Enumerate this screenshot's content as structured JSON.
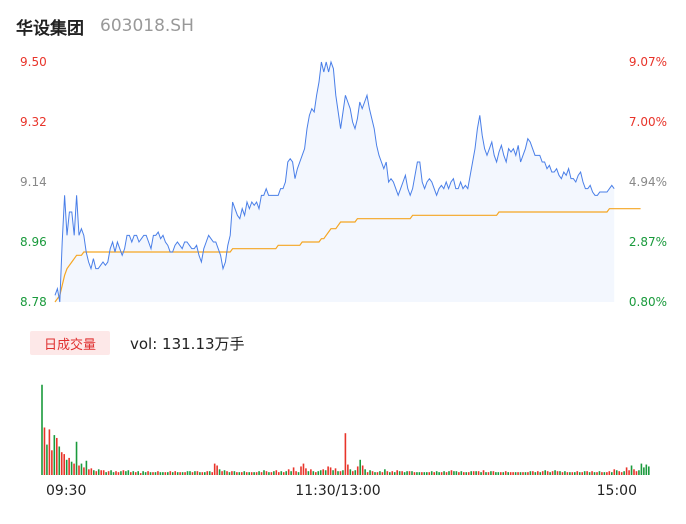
{
  "header": {
    "name": "华设集团",
    "code": "603018.SH"
  },
  "volume_panel": {
    "label": "日成交量",
    "value_text": "vol: 131.13万手"
  },
  "colors": {
    "up": "#e8342a",
    "down": "#1a9a3c",
    "price_line": "#4a7fe8",
    "avg_line": "#f5a623",
    "area_fill": "#f3f7fe",
    "neutral": "#888888"
  },
  "chart_data": [
    {
      "type": "line",
      "title": "",
      "y_ticks": [
        "9.50",
        "9.32",
        "9.14",
        "8.96",
        "8.78"
      ],
      "y_tick_values": [
        9.5,
        9.32,
        9.14,
        8.96,
        8.78
      ],
      "y_tick_colors": [
        "#e8342a",
        "#e8342a",
        "#888888",
        "#1a9a3c",
        "#1a9a3c"
      ],
      "pct_ticks": [
        "9.07%",
        "7.00%",
        "4.94%",
        "2.87%",
        "0.80%"
      ],
      "ylim": [
        8.78,
        9.5
      ],
      "x_ticks": [
        "09:30",
        "11:30/13:00",
        "15:00"
      ],
      "x_tick_positions": [
        0,
        120,
        240
      ],
      "x_range": [
        0,
        240
      ],
      "series": [
        {
          "key": "price",
          "values": [
            8.8,
            8.82,
            8.78,
            8.96,
            9.1,
            8.98,
            9.05,
            9.05,
            8.98,
            9.1,
            8.98,
            9.0,
            8.98,
            8.93,
            8.9,
            8.88,
            8.91,
            8.88,
            8.88,
            8.89,
            8.9,
            8.89,
            8.9,
            8.94,
            8.96,
            8.93,
            8.96,
            8.94,
            8.92,
            8.94,
            8.98,
            8.98,
            8.96,
            8.98,
            8.98,
            8.96,
            8.97,
            8.98,
            8.98,
            8.96,
            8.94,
            8.98,
            8.98,
            8.99,
            8.97,
            8.98,
            8.96,
            8.95,
            8.93,
            8.93,
            8.95,
            8.96,
            8.95,
            8.94,
            8.96,
            8.96,
            8.95,
            8.94,
            8.94,
            8.95,
            8.92,
            8.9,
            8.94,
            8.96,
            8.98,
            8.97,
            8.96,
            8.96,
            8.94,
            8.92,
            8.88,
            8.9,
            8.95,
            8.98,
            9.08,
            9.06,
            9.04,
            9.03,
            9.06,
            9.04,
            9.08,
            9.06,
            9.08,
            9.07,
            9.08,
            9.06,
            9.1,
            9.1,
            9.12,
            9.1,
            9.1,
            9.1,
            9.1,
            9.1,
            9.12,
            9.12,
            9.14,
            9.2,
            9.21,
            9.2,
            9.15,
            9.18,
            9.2,
            9.22,
            9.24,
            9.3,
            9.34,
            9.36,
            9.35,
            9.4,
            9.44,
            9.5,
            9.47,
            9.5,
            9.47,
            9.5,
            9.48,
            9.4,
            9.35,
            9.3,
            9.35,
            9.4,
            9.38,
            9.36,
            9.32,
            9.3,
            9.33,
            9.38,
            9.36,
            9.38,
            9.4,
            9.36,
            9.33,
            9.3,
            9.25,
            9.22,
            9.2,
            9.18,
            9.2,
            9.14,
            9.15,
            9.14,
            9.12,
            9.1,
            9.12,
            9.14,
            9.16,
            9.12,
            9.1,
            9.12,
            9.16,
            9.2,
            9.2,
            9.14,
            9.12,
            9.14,
            9.15,
            9.14,
            9.12,
            9.1,
            9.12,
            9.13,
            9.12,
            9.14,
            9.12,
            9.14,
            9.15,
            9.12,
            9.12,
            9.14,
            9.12,
            9.13,
            9.12,
            9.16,
            9.2,
            9.24,
            9.3,
            9.34,
            9.28,
            9.24,
            9.22,
            9.24,
            9.26,
            9.22,
            9.2,
            9.23,
            9.25,
            9.22,
            9.2,
            9.24,
            9.23,
            9.24,
            9.22,
            9.25,
            9.2,
            9.22,
            9.24,
            9.27,
            9.26,
            9.24,
            9.22,
            9.22,
            9.22,
            9.2,
            9.2,
            9.18,
            9.19,
            9.17,
            9.17,
            9.18,
            9.16,
            9.15,
            9.17,
            9.16,
            9.18,
            9.15,
            9.15,
            9.14,
            9.16,
            9.17,
            9.14,
            9.12,
            9.12,
            9.13,
            9.11,
            9.1,
            9.1,
            9.11,
            9.11,
            9.11,
            9.11,
            9.12,
            9.13,
            9.12
          ]
        },
        {
          "key": "average",
          "values": [
            8.78,
            8.79,
            8.8,
            8.83,
            8.86,
            8.88,
            8.89,
            8.9,
            8.91,
            8.92,
            8.92,
            8.92,
            8.93,
            8.93,
            8.93,
            8.93,
            8.93,
            8.93,
            8.93,
            8.93,
            8.93,
            8.93,
            8.93,
            8.93,
            8.93,
            8.93,
            8.93,
            8.93,
            8.93,
            8.93,
            8.93,
            8.93,
            8.93,
            8.93,
            8.93,
            8.93,
            8.93,
            8.93,
            8.93,
            8.93,
            8.93,
            8.93,
            8.93,
            8.93,
            8.93,
            8.93,
            8.93,
            8.93,
            8.93,
            8.93,
            8.93,
            8.93,
            8.93,
            8.93,
            8.93,
            8.93,
            8.93,
            8.93,
            8.93,
            8.93,
            8.93,
            8.93,
            8.93,
            8.93,
            8.93,
            8.93,
            8.93,
            8.93,
            8.93,
            8.93,
            8.93,
            8.93,
            8.93,
            8.93,
            8.94,
            8.94,
            8.94,
            8.94,
            8.94,
            8.94,
            8.94,
            8.94,
            8.94,
            8.94,
            8.94,
            8.94,
            8.94,
            8.94,
            8.94,
            8.94,
            8.94,
            8.94,
            8.94,
            8.95,
            8.95,
            8.95,
            8.95,
            8.95,
            8.95,
            8.95,
            8.95,
            8.95,
            8.95,
            8.96,
            8.96,
            8.96,
            8.96,
            8.96,
            8.96,
            8.96,
            8.96,
            8.97,
            8.97,
            8.98,
            8.99,
            9.0,
            9.0,
            9.0,
            9.01,
            9.02,
            9.02,
            9.02,
            9.02,
            9.02,
            9.02,
            9.02,
            9.03,
            9.03,
            9.03,
            9.03,
            9.03,
            9.03,
            9.03,
            9.03,
            9.03,
            9.03,
            9.03,
            9.03,
            9.03,
            9.03,
            9.03,
            9.03,
            9.03,
            9.03,
            9.03,
            9.03,
            9.03,
            9.03,
            9.03,
            9.04,
            9.04,
            9.04,
            9.04,
            9.04,
            9.04,
            9.04,
            9.04,
            9.04,
            9.04,
            9.04,
            9.04,
            9.04,
            9.04,
            9.04,
            9.04,
            9.04,
            9.04,
            9.04,
            9.04,
            9.04,
            9.04,
            9.04,
            9.04,
            9.04,
            9.04,
            9.04,
            9.04,
            9.04,
            9.04,
            9.04,
            9.04,
            9.04,
            9.04,
            9.04,
            9.04,
            9.05,
            9.05,
            9.05,
            9.05,
            9.05,
            9.05,
            9.05,
            9.05,
            9.05,
            9.05,
            9.05,
            9.05,
            9.05,
            9.05,
            9.05,
            9.05,
            9.05,
            9.05,
            9.05,
            9.05,
            9.05,
            9.05,
            9.05,
            9.05,
            9.05,
            9.05,
            9.05,
            9.05,
            9.05,
            9.05,
            9.05,
            9.05,
            9.05,
            9.05,
            9.05,
            9.05,
            9.05,
            9.05,
            9.05,
            9.05,
            9.05,
            9.05,
            9.05,
            9.05,
            9.05,
            9.05,
            9.06,
            9.06,
            9.06,
            9.06,
            9.06,
            9.06,
            9.06,
            9.06,
            9.06,
            9.06,
            9.06,
            9.06,
            9.06,
            9.06
          ]
        }
      ]
    },
    {
      "type": "bar",
      "title": "",
      "x_range": [
        0,
        240
      ],
      "volume_units": "万手",
      "ylim": [
        0,
        10
      ],
      "values": [
        9.5,
        5,
        3.2,
        4.8,
        2.6,
        4.2,
        3.9,
        3,
        2.4,
        2.2,
        1.6,
        1.8,
        1.4,
        1.2,
        3.5,
        1,
        1.2,
        0.8,
        1.5,
        0.6,
        0.7,
        0.5,
        0.4,
        0.6,
        0.5,
        0.5,
        0.3,
        0.4,
        0.5,
        0.3,
        0.4,
        0.3,
        0.4,
        0.5,
        0.4,
        0.5,
        0.3,
        0.4,
        0.3,
        0.4,
        0.2,
        0.4,
        0.3,
        0.4,
        0.3,
        0.3,
        0.3,
        0.4,
        0.3,
        0.3,
        0.3,
        0.3,
        0.4,
        0.3,
        0.4,
        0.3,
        0.3,
        0.3,
        0.3,
        0.4,
        0.4,
        0.3,
        0.4,
        0.4,
        0.3,
        0.3,
        0.3,
        0.4,
        0.4,
        0.3,
        1.2,
        1,
        0.6,
        0.4,
        0.5,
        0.4,
        0.3,
        0.4,
        0.4,
        0.3,
        0.3,
        0.3,
        0.4,
        0.3,
        0.3,
        0.3,
        0.3,
        0.3,
        0.4,
        0.3,
        0.5,
        0.4,
        0.3,
        0.3,
        0.4,
        0.5,
        0.3,
        0.4,
        0.3,
        0.4,
        0.6,
        0.4,
        0.8,
        0.4,
        0.3,
        0.9,
        1.2,
        0.7,
        0.4,
        0.6,
        0.4,
        0.3,
        0.4,
        0.5,
        0.6,
        0.5,
        0.9,
        0.8,
        0.5,
        0.7,
        0.4,
        0.4,
        0.5,
        4.4,
        1.1,
        0.6,
        0.4,
        0.5,
        0.9,
        1.6,
        1,
        0.6,
        0.3,
        0.5,
        0.4,
        0.3,
        0.3,
        0.4,
        0.3,
        0.6,
        0.4,
        0.3,
        0.4,
        0.3,
        0.5,
        0.4,
        0.4,
        0.3,
        0.4,
        0.4,
        0.4,
        0.3,
        0.3,
        0.3,
        0.3,
        0.3,
        0.3,
        0.3,
        0.4,
        0.3,
        0.4,
        0.3,
        0.3,
        0.4,
        0.3,
        0.4,
        0.5,
        0.4,
        0.4,
        0.3,
        0.4,
        0.3,
        0.3,
        0.3,
        0.4,
        0.4,
        0.4,
        0.4,
        0.3,
        0.5,
        0.3,
        0.3,
        0.4,
        0.4,
        0.3,
        0.3,
        0.3,
        0.3,
        0.4,
        0.3,
        0.3,
        0.3,
        0.3,
        0.3,
        0.3,
        0.3,
        0.3,
        0.3,
        0.4,
        0.4,
        0.3,
        0.4,
        0.3,
        0.4,
        0.5,
        0.4,
        0.3,
        0.4,
        0.5,
        0.4,
        0.4,
        0.3,
        0.4,
        0.3,
        0.3,
        0.3,
        0.3,
        0.4,
        0.3,
        0.3,
        0.4,
        0.4,
        0.3,
        0.4,
        0.3,
        0.3,
        0.4,
        0.3,
        0.3,
        0.3,
        0.4,
        0.3,
        0.6,
        0.5,
        0.4,
        0.3,
        0.4,
        0.8,
        0.5,
        1,
        0.6,
        0.4,
        0.5,
        1.2,
        0.8,
        1.1,
        0.9
      ],
      "colors": [
        "d",
        "u",
        "d",
        "u",
        "u",
        "d",
        "u",
        "d",
        "u",
        "u",
        "d",
        "u",
        "d",
        "u",
        "d",
        "u",
        "d",
        "u",
        "d",
        "u",
        "u",
        "d",
        "u",
        "d",
        "u",
        "u",
        "d",
        "u",
        "d",
        "d",
        "u",
        "u",
        "d",
        "u",
        "d",
        "d",
        "u",
        "d",
        "u",
        "d",
        "u",
        "d",
        "d",
        "u",
        "d",
        "u",
        "d",
        "u",
        "d",
        "d",
        "u",
        "d",
        "u",
        "d",
        "u",
        "d",
        "u",
        "d",
        "u",
        "d",
        "d",
        "u",
        "d",
        "u",
        "d",
        "u",
        "d",
        "u",
        "d",
        "u",
        "u",
        "u",
        "d",
        "u",
        "d",
        "u",
        "d",
        "u",
        "d",
        "u",
        "d",
        "u",
        "d",
        "u",
        "d",
        "u",
        "d",
        "u",
        "d",
        "u",
        "d",
        "u",
        "d",
        "u",
        "d",
        "u",
        "u",
        "d",
        "u",
        "d",
        "u",
        "d",
        "u",
        "u",
        "d",
        "u",
        "u",
        "u",
        "d",
        "u",
        "d",
        "u",
        "d",
        "d",
        "u",
        "d",
        "u",
        "u",
        "d",
        "u",
        "d",
        "u",
        "d",
        "u",
        "u",
        "d",
        "u",
        "d",
        "u",
        "d",
        "u",
        "d",
        "u",
        "d",
        "u",
        "d",
        "u",
        "d",
        "u",
        "d",
        "u",
        "d",
        "u",
        "d",
        "u",
        "d",
        "u",
        "d",
        "d",
        "u",
        "d",
        "u",
        "d",
        "d",
        "u",
        "d",
        "d",
        "u",
        "d",
        "u",
        "d",
        "d",
        "u",
        "d",
        "u",
        "d",
        "u",
        "d",
        "d",
        "u",
        "d",
        "u",
        "d",
        "u",
        "d",
        "u",
        "d",
        "u",
        "d",
        "u",
        "d",
        "u",
        "d",
        "u",
        "d",
        "d",
        "u",
        "d",
        "u",
        "d",
        "u",
        "u",
        "d",
        "u",
        "d",
        "u",
        "d",
        "u",
        "d",
        "u",
        "d",
        "u",
        "d",
        "u",
        "d",
        "u",
        "d",
        "u",
        "d",
        "u",
        "d",
        "u",
        "d",
        "u",
        "d",
        "u",
        "d",
        "u",
        "d",
        "u",
        "d",
        "u",
        "d",
        "u",
        "d",
        "u",
        "d",
        "u",
        "d",
        "u",
        "u",
        "d",
        "u",
        "d",
        "u",
        "u",
        "d",
        "u",
        "u",
        "d",
        "u",
        "u"
      ]
    }
  ]
}
